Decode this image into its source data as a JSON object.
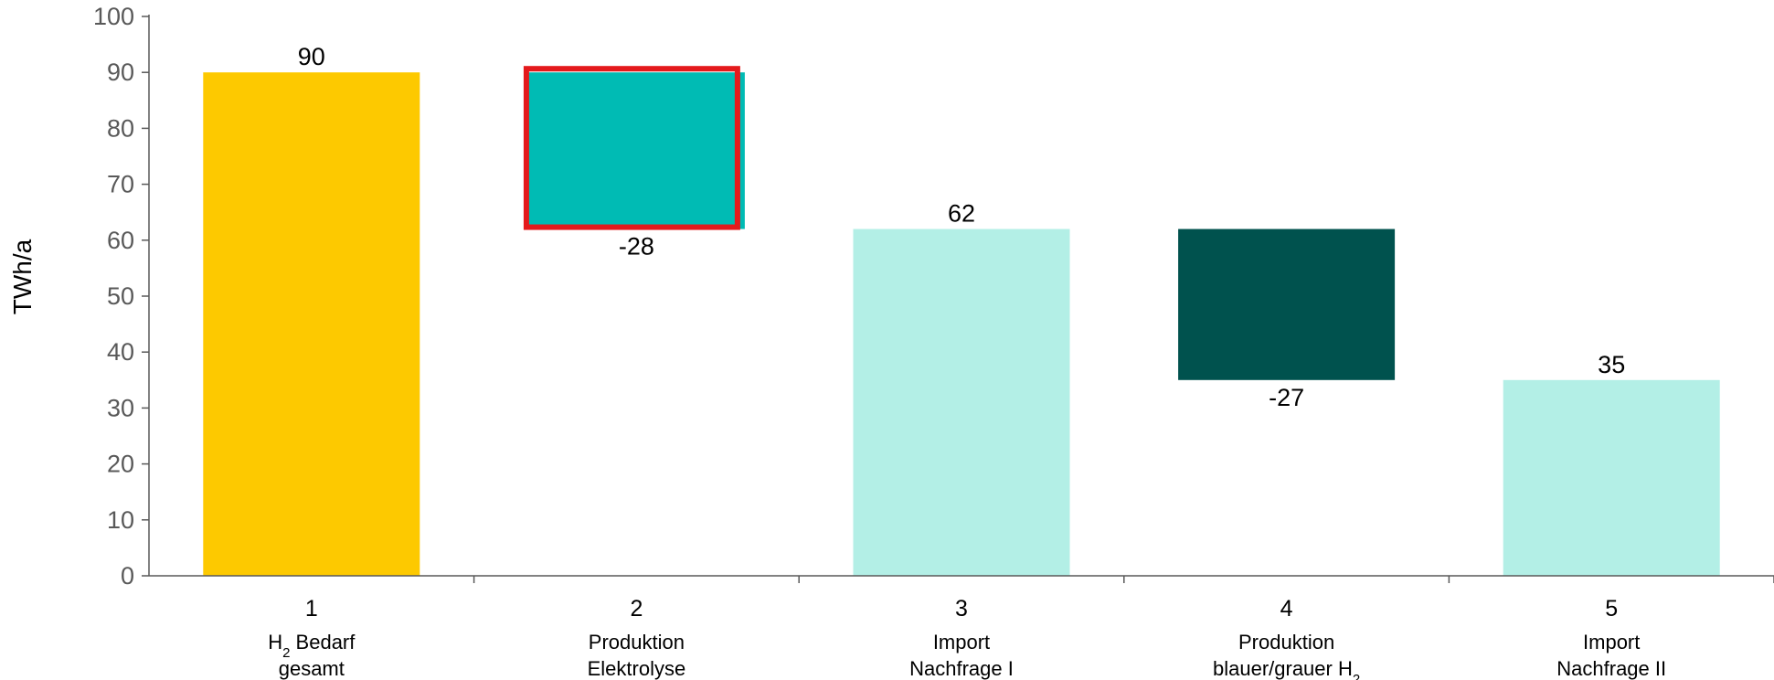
{
  "chart_data": {
    "type": "bar",
    "subtype": "waterfall",
    "ylabel": "TWh/a",
    "ylim": [
      0,
      100
    ],
    "yticks": [
      0,
      10,
      20,
      30,
      40,
      50,
      60,
      70,
      80,
      90,
      100
    ],
    "grid": false,
    "highlight_index": 1,
    "highlight_color": "#e41a1c",
    "categories": [
      {
        "number": "1",
        "label_lines": [
          [
            "H",
            "2",
            " Bedarf"
          ],
          [
            "gesamt"
          ]
        ],
        "start": 0,
        "end": 90,
        "value_label": "90",
        "color": "#fdc900"
      },
      {
        "number": "2",
        "label_lines": [
          [
            "Produktion"
          ],
          [
            "Elektrolyse"
          ]
        ],
        "start": 62,
        "end": 90,
        "value_label": "-28",
        "color": "#00bbb4"
      },
      {
        "number": "3",
        "label_lines": [
          [
            "Import"
          ],
          [
            "Nachfrage I"
          ]
        ],
        "start": 0,
        "end": 62,
        "value_label": "62",
        "color": "#b3efe6"
      },
      {
        "number": "4",
        "label_lines": [
          [
            "Produktion"
          ],
          [
            "blauer/grauer H",
            "2",
            ""
          ]
        ],
        "start": 35,
        "end": 62,
        "value_label": "-27",
        "color": "#00524e"
      },
      {
        "number": "5",
        "label_lines": [
          [
            "Import"
          ],
          [
            "Nachfrage II"
          ]
        ],
        "start": 0,
        "end": 35,
        "value_label": "35",
        "color": "#b3efe6"
      }
    ]
  }
}
